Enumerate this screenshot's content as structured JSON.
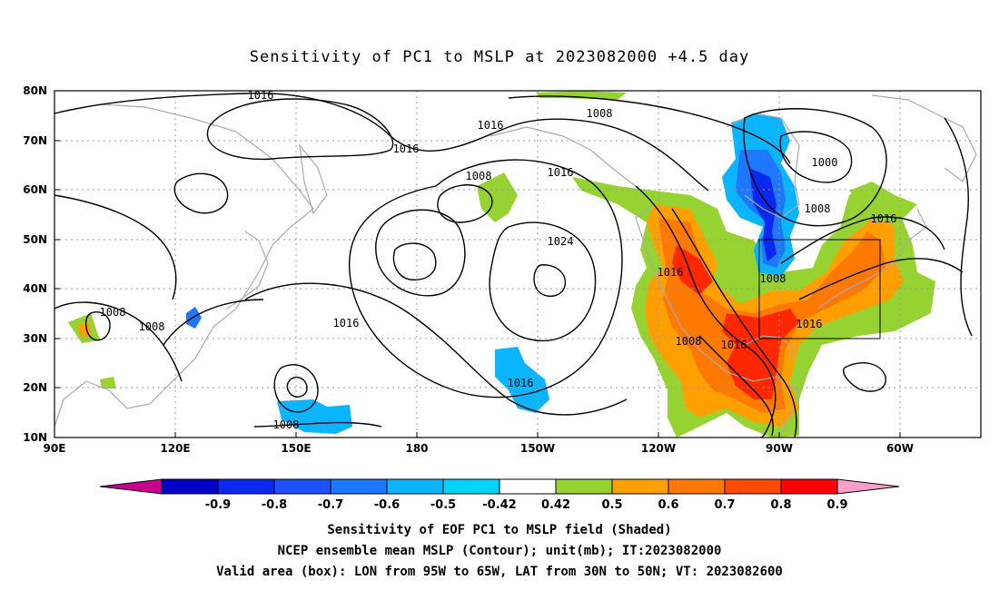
{
  "title": "Sensitivity of PC1 to MSLP at 2023082000 +4.5 day",
  "map": {
    "lat_ticks": [
      "80N",
      "70N",
      "60N",
      "50N",
      "40N",
      "30N",
      "20N",
      "10N"
    ],
    "lon_ticks": [
      "90E",
      "120E",
      "150E",
      "180",
      "150W",
      "120W",
      "90W",
      "60W"
    ],
    "contour_labels": [
      "1016",
      "1016",
      "1008",
      "1016",
      "1008",
      "1016",
      "1000",
      "1008",
      "1016",
      "1024",
      "1016",
      "1008",
      "1016",
      "1008",
      "1008",
      "1016",
      "1008",
      "1016",
      "1016",
      "1008"
    ],
    "valid_box": {
      "lon": [
        "95W",
        "65W"
      ],
      "lat": [
        "30N",
        "50N"
      ]
    }
  },
  "colorbar": {
    "labels": [
      "-0.9",
      "-0.8",
      "-0.7",
      "-0.6",
      "-0.5",
      "-0.42",
      "0.42",
      "0.5",
      "0.6",
      "0.7",
      "0.8",
      "0.9"
    ],
    "colors": [
      "#c80090",
      "#0000c8",
      "#0a28f0",
      "#1e50ff",
      "#1e78ff",
      "#0ab4ff",
      "#00d2ff",
      "#ffffff",
      "#96d232",
      "#ffa000",
      "#ff7800",
      "#ff4b00",
      "#ff0000",
      "#f5a0c8"
    ]
  },
  "shading_colors": {
    "green": "#96d232",
    "orange": "#ffa000",
    "dark_orange": "#ff7800",
    "red_orange": "#ff4b00",
    "red": "#ff0000",
    "light_blue": "#0ab4ff",
    "blue": "#1e78ff",
    "dark_blue": "#0a28f0"
  },
  "caption": {
    "line1": "Sensitivity of EOF PC1 to MSLP field (Shaded)",
    "line2": "NCEP ensemble mean MSLP (Contour); unit(mb); IT:2023082000",
    "line3": "Valid area (box): LON from 95W to 65W, LAT from 30N to 50N; VT: 2023082600"
  }
}
